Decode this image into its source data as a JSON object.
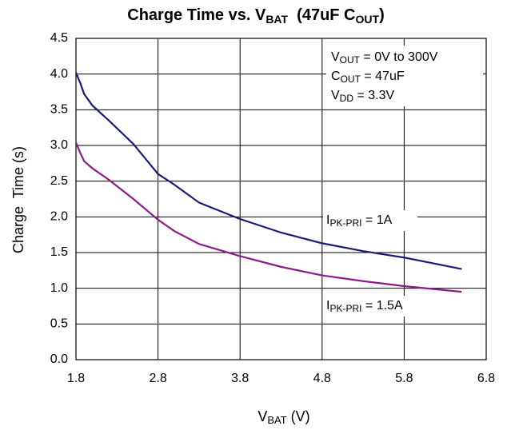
{
  "chart_data": {
    "type": "line",
    "title": [
      "Charge Time vs. V",
      "BAT",
      "  (47uF C",
      "OUT",
      ")"
    ],
    "x_label": [
      "V",
      "BAT",
      " (V)"
    ],
    "y_label": "Charge  Time (s)",
    "annotations": [
      [
        "V",
        "OUT",
        " = 0V to 300V"
      ],
      [
        "C",
        "OUT",
        " = 47uF"
      ],
      [
        "V",
        "DD",
        " = 3.3V"
      ]
    ],
    "x": [
      1.8,
      1.85,
      1.9,
      2.0,
      2.2,
      2.5,
      2.8,
      3.0,
      3.3,
      3.8,
      4.3,
      4.8,
      5.3,
      5.8,
      6.5
    ],
    "series": [
      {
        "name": [
          "I",
          "PK-PRI",
          " = 1A"
        ],
        "color": "#1a1a7a",
        "values": [
          4.02,
          3.88,
          3.72,
          3.56,
          3.35,
          3.02,
          2.6,
          2.45,
          2.2,
          1.97,
          1.78,
          1.63,
          1.52,
          1.43,
          1.27
        ]
      },
      {
        "name": [
          "I",
          "PK-PRI",
          " = 1.5A"
        ],
        "color": "#8b1a8b",
        "values": [
          3.04,
          2.9,
          2.78,
          2.68,
          2.52,
          2.25,
          1.96,
          1.8,
          1.62,
          1.45,
          1.3,
          1.18,
          1.1,
          1.03,
          0.95
        ]
      }
    ],
    "xlim": [
      1.8,
      6.8
    ],
    "xticks": [
      1.8,
      2.8,
      3.8,
      4.8,
      5.8,
      6.8
    ],
    "ylim": [
      0,
      4.5
    ],
    "yticks": [
      {
        "value": 0,
        "label": "0.0"
      },
      0.5,
      {
        "value": 1,
        "label": "1.0"
      },
      1.5,
      {
        "value": 2,
        "label": "2.0"
      },
      2.5,
      {
        "value": 3,
        "label": "3.0"
      },
      3.5,
      {
        "value": 4,
        "label": "4.0"
      },
      4.5
    ],
    "grid": true
  }
}
